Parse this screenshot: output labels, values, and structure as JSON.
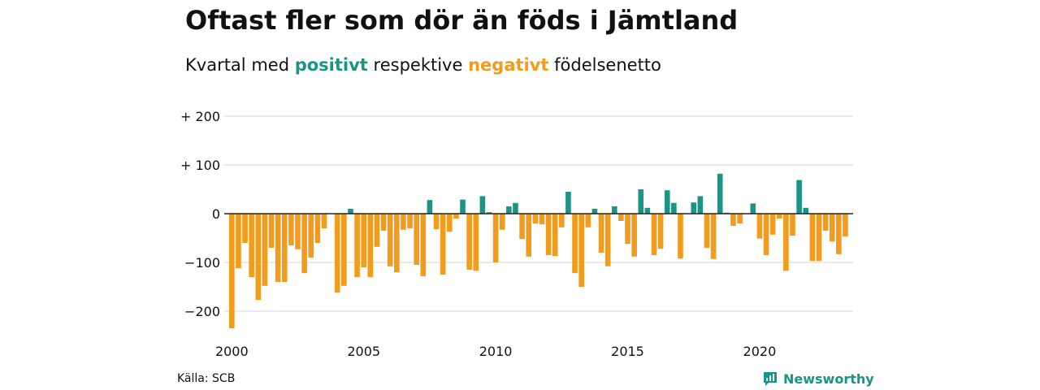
{
  "header": {
    "title": "Oftast fler som dör än föds i Jämtland",
    "subtitle_prefix": "Kvartal med",
    "subtitle_positive": "positivt",
    "subtitle_middle": "respektive",
    "subtitle_negative": "negativt",
    "subtitle_suffix": "födelsenetto"
  },
  "footer": {
    "source": "Källa: SCB",
    "brand": "Newsworthy"
  },
  "colors": {
    "positive": "#1a9484",
    "negative": "#f29b1c",
    "grid": "#dddddd",
    "zero": "#222222"
  },
  "icons": {
    "brand_logo": "newsworthy-logo-icon"
  },
  "chart_data": {
    "type": "bar",
    "xlabel": "",
    "ylabel": "",
    "ylim": [
      -240,
      200
    ],
    "yticks": [
      200,
      100,
      0,
      -100,
      -200
    ],
    "ytick_labels": [
      "+ 200",
      "+ 100",
      "0",
      "−100",
      "−200"
    ],
    "xtick_labels": [
      "2000",
      "2005",
      "2010",
      "2015",
      "2020"
    ],
    "xtick_years": [
      2000,
      2005,
      2010,
      2015,
      2020
    ],
    "start_year": 2000,
    "grid": true,
    "values": [
      -235,
      -112,
      -60,
      -130,
      -177,
      -148,
      -70,
      -140,
      -140,
      -65,
      -73,
      -122,
      -90,
      -60,
      -30,
      0,
      -162,
      -148,
      10,
      -130,
      -110,
      -130,
      -68,
      -35,
      -108,
      -120,
      -33,
      -30,
      -105,
      -128,
      28,
      -32,
      -125,
      -37,
      -10,
      29,
      -115,
      -117,
      36,
      3,
      -100,
      -33,
      15,
      22,
      -52,
      -88,
      -20,
      -22,
      -85,
      -87,
      -28,
      45,
      -122,
      -150,
      -28,
      10,
      -80,
      -108,
      15,
      -15,
      -62,
      -88,
      50,
      12,
      -85,
      -72,
      48,
      22,
      -92,
      0,
      23,
      36,
      -70,
      -93,
      82,
      2,
      -25,
      -20,
      0,
      21,
      -51,
      -85,
      -43,
      -10,
      -117,
      -45,
      69,
      12,
      -97,
      -97,
      -35,
      -57,
      -83,
      -47
    ]
  }
}
